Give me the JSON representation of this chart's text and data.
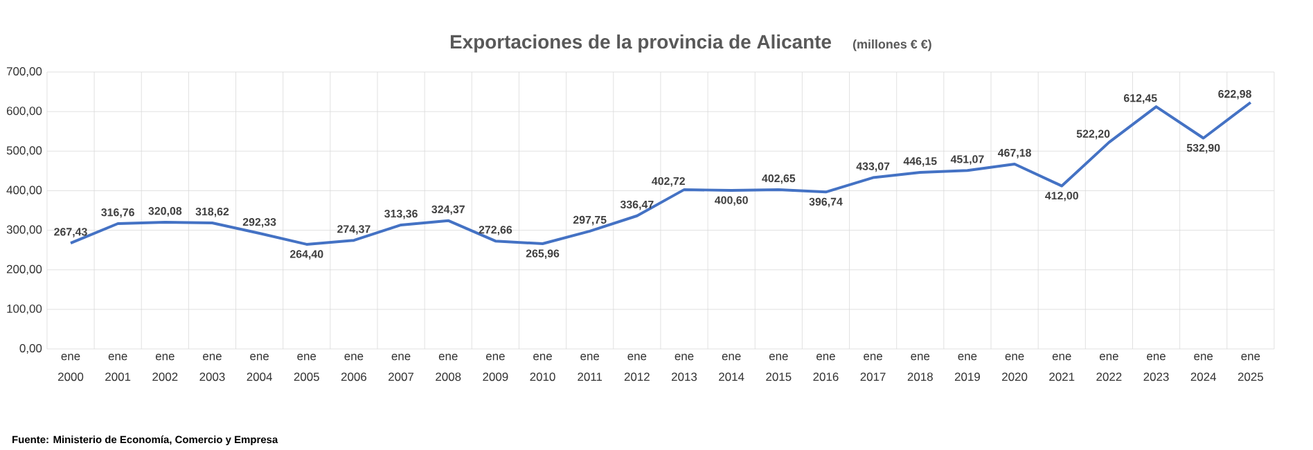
{
  "chart_data": {
    "type": "line",
    "title": "Exportaciones  de la provincia  de Alicante",
    "subtitle": "(millones € €)",
    "categories": [
      "ene 2000",
      "ene 2001",
      "ene 2002",
      "ene 2003",
      "ene 2004",
      "ene 2005",
      "ene 2006",
      "ene 2007",
      "ene 2008",
      "ene 2009",
      "ene 2010",
      "ene 2011",
      "ene 2012",
      "ene 2013",
      "ene 2014",
      "ene 2015",
      "ene 2016",
      "ene 2017",
      "ene 2018",
      "ene 2019",
      "ene 2020",
      "ene 2021",
      "ene 2022",
      "ene 2023",
      "ene 2024",
      "ene 2025"
    ],
    "values": [
      267.43,
      316.76,
      320.08,
      318.62,
      292.33,
      264.4,
      274.37,
      313.36,
      324.37,
      272.66,
      265.96,
      297.75,
      336.47,
      402.72,
      400.6,
      402.65,
      396.74,
      433.07,
      446.15,
      451.07,
      467.18,
      412.0,
      522.2,
      612.45,
      532.9,
      622.98
    ],
    "value_labels": [
      "267,43",
      "316,76",
      "320,08",
      "318,62",
      "292,33",
      "264,40",
      "274,37",
      "313,36",
      "324,37",
      "272,66",
      "265,96",
      "297,75",
      "336,47",
      "402,72",
      "400,60",
      "402,65",
      "396,74",
      "433,07",
      "446,15",
      "451,07",
      "467,18",
      "412,00",
      "522,20",
      "612,45",
      "532,90",
      "622,98"
    ],
    "color": "#4472c4",
    "ylim": [
      0,
      700
    ],
    "yticks": [
      {
        "value": 0,
        "label": "0,00"
      },
      {
        "value": 100,
        "label": "100,00"
      },
      {
        "value": 200,
        "label": "200,00"
      },
      {
        "value": 300,
        "label": "300,00"
      },
      {
        "value": 400,
        "label": "400,00"
      },
      {
        "value": 500,
        "label": "500,00"
      },
      {
        "value": 600,
        "label": "600,00"
      },
      {
        "value": 700,
        "label": "700,00"
      }
    ],
    "grid": true,
    "marker": "none",
    "line_style": "solid",
    "annotations": [
      "Fuente: Ministerio de Economía, Comercio y Empresa"
    ]
  }
}
